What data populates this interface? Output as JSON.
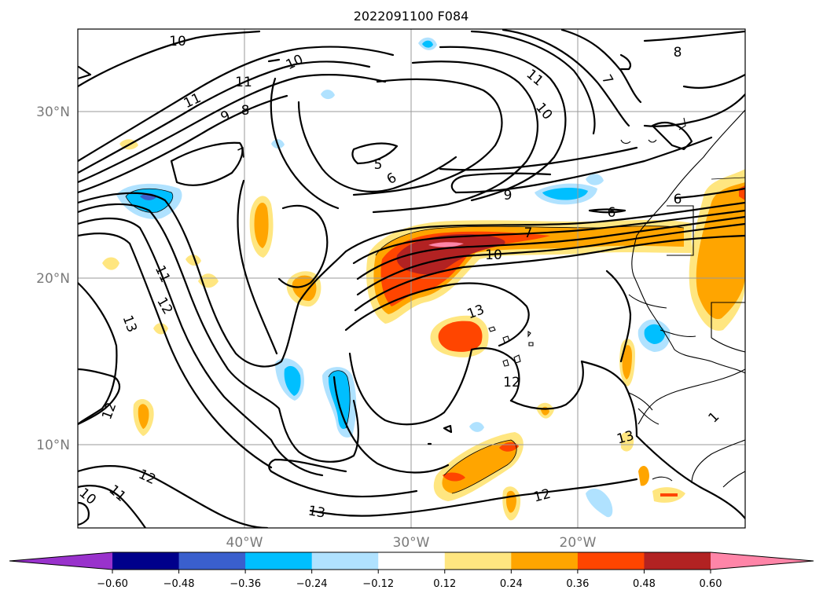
{
  "title": "2022091100 F084",
  "map": {
    "lat_labels": [
      {
        "text": "30°N",
        "lat": 30
      },
      {
        "text": "20°N",
        "lat": 20
      },
      {
        "text": "10°N",
        "lat": 10
      }
    ],
    "lon_labels": [
      {
        "text": "40°W",
        "lon": -40
      },
      {
        "text": "30°W",
        "lon": -30
      },
      {
        "text": "20°W",
        "lon": -20
      }
    ],
    "extent": {
      "lon_min": -50,
      "lon_max": -10,
      "lat_min": 5,
      "lat_max": 35
    },
    "contour_labels": [
      "10",
      "10",
      "11",
      "11",
      "9",
      "8",
      "7",
      "5",
      "6",
      "11",
      "10",
      "7",
      "8",
      "9",
      "6",
      "6",
      "7",
      "10",
      "11",
      "12",
      "13",
      "13",
      "12",
      "12",
      "12",
      "11",
      "10",
      "13",
      "12",
      "13",
      "1"
    ]
  },
  "colorbar": {
    "ticks": [
      "−0.60",
      "−0.48",
      "−0.36",
      "−0.24",
      "−0.12",
      "0.12",
      "0.24",
      "0.36",
      "0.48",
      "0.60"
    ],
    "colors": [
      "#9932cc",
      "#00008b",
      "#3a5fcd",
      "#00bfff",
      "#b0e2ff",
      "#ffffff",
      "#ffe680",
      "#ffa500",
      "#ff4500",
      "#b22222",
      "#ff85a8"
    ]
  }
}
